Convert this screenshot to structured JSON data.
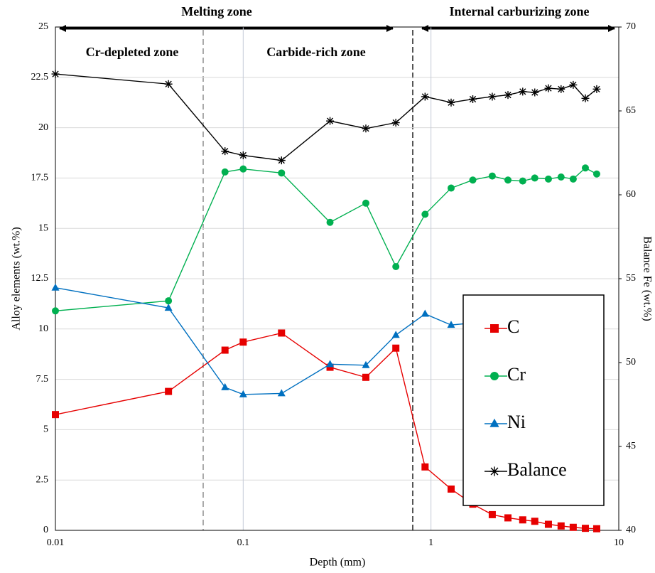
{
  "chart_data": {
    "type": "line",
    "x_label": "Depth (mm)",
    "y_label": "Alloy elements (wt.%)",
    "y2_label": "Balance Fe (wt.%)",
    "annotations": [
      "Melting zone",
      "Internal carburizing zone",
      "Cr-depleted zone",
      "Carbide-rich zone"
    ],
    "x_scale": "log",
    "xlim": [
      0.01,
      10
    ],
    "xticks": [
      0.01,
      0.1,
      1,
      10
    ],
    "ylim": [
      0,
      25
    ],
    "yticks": [
      0,
      2.5,
      5,
      7.5,
      10,
      12.5,
      15,
      17.5,
      20,
      22.5,
      25
    ],
    "y2lim": [
      40,
      70
    ],
    "y2ticks": [
      40,
      45,
      50,
      55,
      60,
      65,
      70
    ],
    "grid": true,
    "legend": "lower right",
    "x": [
      0.01,
      0.04,
      0.08,
      0.1,
      0.16,
      0.29,
      0.45,
      0.65,
      0.93,
      1.28,
      1.67,
      2.12,
      2.57,
      3.08,
      3.57,
      4.22,
      4.93,
      5.72,
      6.64,
      7.63
    ],
    "series": [
      {
        "name": "C",
        "color": "#e60000",
        "marker": "square",
        "values": [
          5.75,
          6.9,
          8.95,
          9.35,
          9.8,
          8.1,
          7.6,
          9.05,
          3.15,
          2.05,
          1.3,
          0.78,
          0.62,
          0.52,
          0.45,
          0.3,
          0.22,
          0.15,
          0.1,
          0.08
        ]
      },
      {
        "name": "Cr",
        "color": "#00b050",
        "marker": "circle",
        "values": [
          10.9,
          11.4,
          17.8,
          17.95,
          17.75,
          15.3,
          16.25,
          13.1,
          15.7,
          17.0,
          17.4,
          17.6,
          17.4,
          17.35,
          17.5,
          17.45,
          17.55,
          17.45,
          18.0,
          17.7
        ]
      },
      {
        "name": "Ni",
        "color": "#0070c0",
        "marker": "triangle",
        "values": [
          12.05,
          11.05,
          7.1,
          6.75,
          6.8,
          8.25,
          8.2,
          9.7,
          10.75,
          10.2,
          10.3,
          10.4,
          11.1,
          11.1,
          11.15,
          11.1,
          11.1,
          11.05,
          11.25,
          10.95
        ]
      },
      {
        "name": "Balance",
        "color": "#000000",
        "marker": "asterisk",
        "axis": "y2",
        "values": [
          67.2,
          66.6,
          62.6,
          62.35,
          62.05,
          64.4,
          63.95,
          64.3,
          65.85,
          65.5,
          65.7,
          65.85,
          65.95,
          66.15,
          66.1,
          66.35,
          66.3,
          66.55,
          65.75,
          66.3
        ]
      }
    ]
  }
}
